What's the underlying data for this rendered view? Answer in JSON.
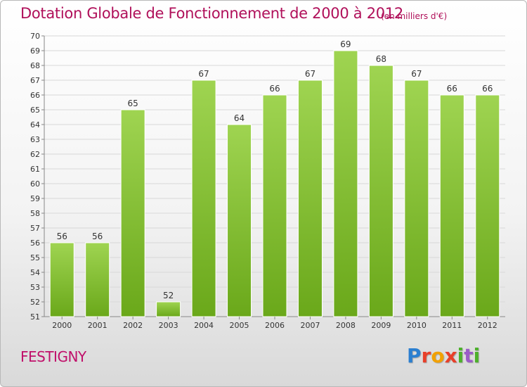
{
  "header": {
    "title": "Dotation Globale de Fonctionnement de 2000 à 2012",
    "unit": "(en milliers d'€)"
  },
  "commune": "FESTIGNY",
  "logo": {
    "text": "Proxiti"
  },
  "chart_data": {
    "type": "bar",
    "title": "Dotation Globale de Fonctionnement de 2000 à 2012",
    "subtitle": "(en milliers d'€)",
    "xlabel": "",
    "ylabel": "",
    "categories": [
      "2000",
      "2001",
      "2002",
      "2003",
      "2004",
      "2005",
      "2006",
      "2007",
      "2008",
      "2009",
      "2010",
      "2011",
      "2012"
    ],
    "values": [
      56,
      56,
      65,
      52,
      67,
      64,
      66,
      67,
      69,
      68,
      67,
      66,
      66
    ],
    "ylim": [
      51,
      70
    ],
    "yticks": [
      51,
      52,
      53,
      54,
      55,
      56,
      57,
      58,
      59,
      60,
      61,
      62,
      63,
      64,
      65,
      66,
      67,
      68,
      69,
      70
    ],
    "grid": true,
    "bar_color": "#8cc63f",
    "title_color": "#b0105a"
  }
}
